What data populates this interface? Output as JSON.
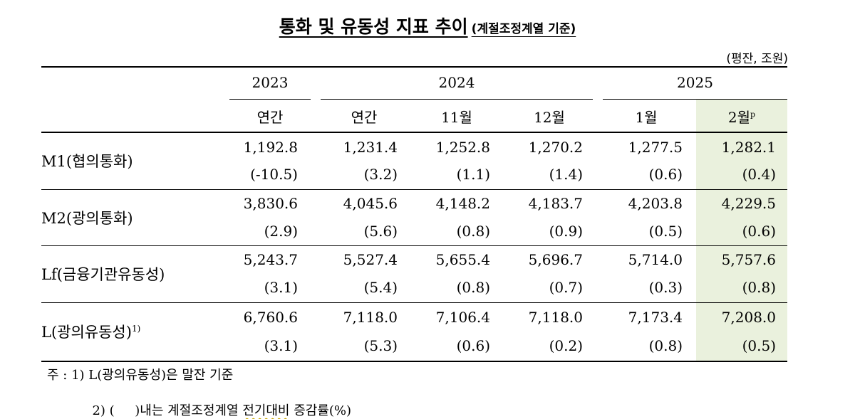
{
  "title": {
    "main": "통화 및 유동성 지표 추이",
    "sub": "(계절조정계열 기준)"
  },
  "unit": "(평잔, 조원)",
  "header": {
    "years": [
      "2023",
      "2024",
      "2025"
    ],
    "columns": [
      "연간",
      "연간",
      "11월",
      "12월",
      "1월",
      "2월"
    ],
    "prelim_mark": "p"
  },
  "rows": [
    {
      "label": "M1(협의통화)",
      "values": [
        "1,192.8",
        "1,231.4",
        "1,252.8",
        "1,270.2",
        "1,277.5",
        "1,282.1"
      ],
      "changes": [
        "(-10.5)",
        "(3.2)",
        "(1.1)",
        "(1.4)",
        "(0.6)",
        "(0.4)"
      ]
    },
    {
      "label": "M2(광의통화)",
      "values": [
        "3,830.6",
        "4,045.6",
        "4,148.2",
        "4,183.7",
        "4,203.8",
        "4,229.5"
      ],
      "changes": [
        "(2.9)",
        "(5.6)",
        "(0.8)",
        "(0.9)",
        "(0.5)",
        "(0.6)"
      ]
    },
    {
      "label": "Lf(금융기관유동성)",
      "values": [
        "5,243.7",
        "5,527.4",
        "5,655.4",
        "5,696.7",
        "5,714.0",
        "5,757.6"
      ],
      "changes": [
        "(3.1)",
        "(5.4)",
        "(0.8)",
        "(0.7)",
        "(0.3)",
        "(0.8)"
      ]
    },
    {
      "label": "L(광의유동성)",
      "label_sup": "1)",
      "values": [
        "6,760.6",
        "7,118.0",
        "7,106.4",
        "7,118.0",
        "7,173.4",
        "7,208.0"
      ],
      "changes": [
        "(3.1)",
        "(5.3)",
        "(0.6)",
        "(0.2)",
        "(0.8)",
        "(0.5)"
      ]
    }
  ],
  "notes": {
    "note1": "주 : 1) L(광의유동성)은 말잔 기준",
    "note2_prefix": "2) (     )내는 계절조정계열 ",
    "note2_wavy": "전기대비",
    "note2_suffix": " 증감률(%)"
  }
}
